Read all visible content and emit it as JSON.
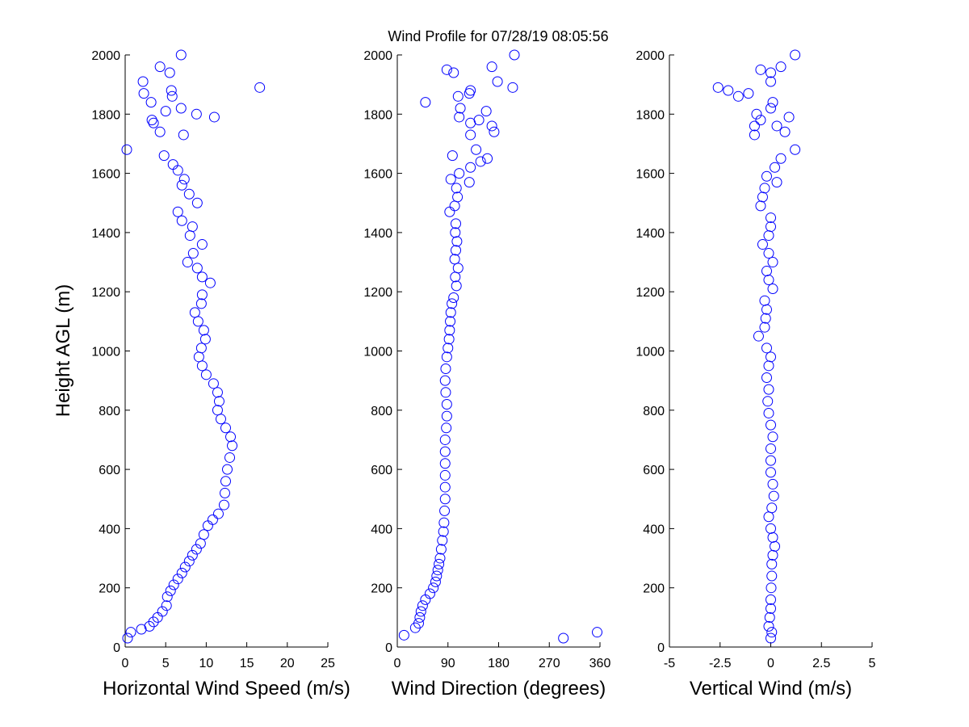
{
  "title": "Wind Profile for  07/28/19 08:05:56",
  "y_label": "Height AGL (m)",
  "colors": {
    "marker": "#0000ff",
    "axis": "#000000",
    "background": "#ffffff"
  },
  "chart_data": [
    {
      "type": "scatter",
      "marker": "circle",
      "xlabel": "Horizontal Wind Speed (m/s)",
      "ylabel": "Height AGL (m)",
      "xlim": [
        0,
        25
      ],
      "ylim": [
        0,
        2000
      ],
      "xticks": [
        0,
        5,
        10,
        15,
        20,
        25
      ],
      "xtick_labels": [
        "0",
        "5",
        "10",
        "15",
        "20",
        "25"
      ],
      "yticks": [
        0,
        200,
        400,
        600,
        800,
        1000,
        1200,
        1400,
        1600,
        1800,
        2000
      ],
      "ytick_labels": [
        "0",
        "200",
        "400",
        "600",
        "800",
        "1000",
        "1200",
        "1400",
        "1600",
        "1800",
        "2000"
      ],
      "grid": false,
      "points": [
        {
          "x": 0.3,
          "y": 30
        },
        {
          "x": 0.7,
          "y": 50
        },
        {
          "x": 2,
          "y": 60
        },
        {
          "x": 3,
          "y": 70
        },
        {
          "x": 3.5,
          "y": 85
        },
        {
          "x": 4,
          "y": 100
        },
        {
          "x": 4.6,
          "y": 120
        },
        {
          "x": 5.1,
          "y": 140
        },
        {
          "x": 5.2,
          "y": 170
        },
        {
          "x": 5.6,
          "y": 190
        },
        {
          "x": 6,
          "y": 210
        },
        {
          "x": 6.5,
          "y": 230
        },
        {
          "x": 7,
          "y": 250
        },
        {
          "x": 7.4,
          "y": 270
        },
        {
          "x": 7.9,
          "y": 290
        },
        {
          "x": 8.3,
          "y": 310
        },
        {
          "x": 8.8,
          "y": 330
        },
        {
          "x": 9.3,
          "y": 350
        },
        {
          "x": 9.7,
          "y": 380
        },
        {
          "x": 10.2,
          "y": 410
        },
        {
          "x": 10.8,
          "y": 430
        },
        {
          "x": 11.5,
          "y": 450
        },
        {
          "x": 12.2,
          "y": 480
        },
        {
          "x": 12.3,
          "y": 520
        },
        {
          "x": 12.4,
          "y": 560
        },
        {
          "x": 12.6,
          "y": 600
        },
        {
          "x": 12.9,
          "y": 640
        },
        {
          "x": 13.2,
          "y": 680
        },
        {
          "x": 13,
          "y": 710
        },
        {
          "x": 12.4,
          "y": 740
        },
        {
          "x": 11.8,
          "y": 770
        },
        {
          "x": 11.4,
          "y": 800
        },
        {
          "x": 11.6,
          "y": 830
        },
        {
          "x": 11.4,
          "y": 860
        },
        {
          "x": 10.9,
          "y": 890
        },
        {
          "x": 10,
          "y": 920
        },
        {
          "x": 9.5,
          "y": 950
        },
        {
          "x": 9.1,
          "y": 980
        },
        {
          "x": 9.4,
          "y": 1010
        },
        {
          "x": 9.9,
          "y": 1040
        },
        {
          "x": 9.7,
          "y": 1070
        },
        {
          "x": 9,
          "y": 1100
        },
        {
          "x": 8.6,
          "y": 1130
        },
        {
          "x": 9.4,
          "y": 1160
        },
        {
          "x": 9.5,
          "y": 1190
        },
        {
          "x": 10.5,
          "y": 1230
        },
        {
          "x": 9.5,
          "y": 1250
        },
        {
          "x": 8.9,
          "y": 1280
        },
        {
          "x": 7.7,
          "y": 1300
        },
        {
          "x": 8.4,
          "y": 1330
        },
        {
          "x": 9.5,
          "y": 1360
        },
        {
          "x": 8,
          "y": 1390
        },
        {
          "x": 8.3,
          "y": 1420
        },
        {
          "x": 7,
          "y": 1440
        },
        {
          "x": 6.5,
          "y": 1470
        },
        {
          "x": 8.9,
          "y": 1500
        },
        {
          "x": 7.9,
          "y": 1530
        },
        {
          "x": 7,
          "y": 1560
        },
        {
          "x": 7.3,
          "y": 1580
        },
        {
          "x": 6.5,
          "y": 1610
        },
        {
          "x": 5.9,
          "y": 1630
        },
        {
          "x": 4.8,
          "y": 1660
        },
        {
          "x": 0.2,
          "y": 1680
        },
        {
          "x": 7.2,
          "y": 1730
        },
        {
          "x": 4.3,
          "y": 1740
        },
        {
          "x": 3.5,
          "y": 1770
        },
        {
          "x": 3.3,
          "y": 1780
        },
        {
          "x": 11,
          "y": 1790
        },
        {
          "x": 8.8,
          "y": 1800
        },
        {
          "x": 5,
          "y": 1810
        },
        {
          "x": 6.9,
          "y": 1820
        },
        {
          "x": 3.2,
          "y": 1840
        },
        {
          "x": 5.8,
          "y": 1860
        },
        {
          "x": 2.3,
          "y": 1870
        },
        {
          "x": 5.7,
          "y": 1880
        },
        {
          "x": 16.6,
          "y": 1890
        },
        {
          "x": 2.2,
          "y": 1910
        },
        {
          "x": 5.5,
          "y": 1940
        },
        {
          "x": 4.3,
          "y": 1960
        },
        {
          "x": 6.9,
          "y": 2000
        }
      ]
    },
    {
      "type": "scatter",
      "marker": "circle",
      "xlabel": "Wind Direction (degrees)",
      "ylabel": "",
      "xlim": [
        0,
        360
      ],
      "ylim": [
        0,
        2000
      ],
      "xticks": [
        0,
        90,
        180,
        270,
        360
      ],
      "xtick_labels": [
        "0",
        "90",
        "180",
        "270",
        "360"
      ],
      "yticks": [
        0,
        200,
        400,
        600,
        800,
        1000,
        1200,
        1400,
        1600,
        1800,
        2000
      ],
      "ytick_labels": [
        "0",
        "200",
        "400",
        "600",
        "800",
        "1000",
        "1200",
        "1400",
        "1600",
        "1800",
        "2000"
      ],
      "grid": false,
      "points": [
        {
          "x": 12,
          "y": 40
        },
        {
          "x": 355,
          "y": 50
        },
        {
          "x": 295,
          "y": 30
        },
        {
          "x": 32,
          "y": 65
        },
        {
          "x": 38,
          "y": 80
        },
        {
          "x": 40,
          "y": 100
        },
        {
          "x": 42,
          "y": 120
        },
        {
          "x": 45,
          "y": 140
        },
        {
          "x": 50,
          "y": 160
        },
        {
          "x": 58,
          "y": 180
        },
        {
          "x": 64,
          "y": 200
        },
        {
          "x": 68,
          "y": 220
        },
        {
          "x": 70,
          "y": 240
        },
        {
          "x": 72,
          "y": 260
        },
        {
          "x": 74,
          "y": 280
        },
        {
          "x": 76,
          "y": 300
        },
        {
          "x": 78,
          "y": 330
        },
        {
          "x": 80,
          "y": 360
        },
        {
          "x": 82,
          "y": 390
        },
        {
          "x": 83,
          "y": 420
        },
        {
          "x": 84,
          "y": 460
        },
        {
          "x": 85,
          "y": 500
        },
        {
          "x": 85,
          "y": 540
        },
        {
          "x": 85,
          "y": 580
        },
        {
          "x": 85,
          "y": 620
        },
        {
          "x": 85,
          "y": 660
        },
        {
          "x": 85,
          "y": 700
        },
        {
          "x": 87,
          "y": 740
        },
        {
          "x": 88,
          "y": 780
        },
        {
          "x": 88,
          "y": 820
        },
        {
          "x": 86,
          "y": 860
        },
        {
          "x": 85,
          "y": 900
        },
        {
          "x": 86,
          "y": 940
        },
        {
          "x": 88,
          "y": 980
        },
        {
          "x": 90,
          "y": 1010
        },
        {
          "x": 92,
          "y": 1040
        },
        {
          "x": 93,
          "y": 1070
        },
        {
          "x": 94,
          "y": 1100
        },
        {
          "x": 95,
          "y": 1130
        },
        {
          "x": 97,
          "y": 1160
        },
        {
          "x": 100,
          "y": 1180
        },
        {
          "x": 105,
          "y": 1220
        },
        {
          "x": 103,
          "y": 1250
        },
        {
          "x": 108,
          "y": 1280
        },
        {
          "x": 102,
          "y": 1310
        },
        {
          "x": 104,
          "y": 1340
        },
        {
          "x": 106,
          "y": 1370
        },
        {
          "x": 103,
          "y": 1400
        },
        {
          "x": 104,
          "y": 1430
        },
        {
          "x": 93,
          "y": 1470
        },
        {
          "x": 102,
          "y": 1490
        },
        {
          "x": 107,
          "y": 1520
        },
        {
          "x": 105,
          "y": 1550
        },
        {
          "x": 95,
          "y": 1580
        },
        {
          "x": 110,
          "y": 1600
        },
        {
          "x": 128,
          "y": 1570
        },
        {
          "x": 130,
          "y": 1620
        },
        {
          "x": 148,
          "y": 1640
        },
        {
          "x": 160,
          "y": 1650
        },
        {
          "x": 98,
          "y": 1660
        },
        {
          "x": 140,
          "y": 1680
        },
        {
          "x": 130,
          "y": 1730
        },
        {
          "x": 172,
          "y": 1740
        },
        {
          "x": 168,
          "y": 1760
        },
        {
          "x": 130,
          "y": 1770
        },
        {
          "x": 145,
          "y": 1780
        },
        {
          "x": 110,
          "y": 1790
        },
        {
          "x": 158,
          "y": 1810
        },
        {
          "x": 112,
          "y": 1820
        },
        {
          "x": 50,
          "y": 1840
        },
        {
          "x": 108,
          "y": 1860
        },
        {
          "x": 128,
          "y": 1870
        },
        {
          "x": 130,
          "y": 1880
        },
        {
          "x": 205,
          "y": 1890
        },
        {
          "x": 178,
          "y": 1910
        },
        {
          "x": 100,
          "y": 1940
        },
        {
          "x": 88,
          "y": 1950
        },
        {
          "x": 168,
          "y": 1960
        },
        {
          "x": 208,
          "y": 2000
        }
      ]
    },
    {
      "type": "scatter",
      "marker": "circle",
      "xlabel": "Vertical Wind (m/s)",
      "ylabel": "",
      "xlim": [
        -5,
        5
      ],
      "ylim": [
        0,
        2000
      ],
      "xticks": [
        -5,
        -2.5,
        0,
        2.5,
        5
      ],
      "xtick_labels": [
        "-5",
        "-2.5",
        "0",
        "2.5",
        "5"
      ],
      "yticks": [
        0,
        200,
        400,
        600,
        800,
        1000,
        1200,
        1400,
        1600,
        1800,
        2000
      ],
      "ytick_labels": [
        "0",
        "200",
        "400",
        "600",
        "800",
        "1000",
        "1200",
        "1400",
        "1600",
        "1800",
        "2000"
      ],
      "grid": false,
      "points": [
        {
          "x": 0,
          "y": 30
        },
        {
          "x": 0.05,
          "y": 50
        },
        {
          "x": -0.1,
          "y": 70
        },
        {
          "x": -0.05,
          "y": 100
        },
        {
          "x": 0,
          "y": 130
        },
        {
          "x": 0,
          "y": 160
        },
        {
          "x": 0.02,
          "y": 200
        },
        {
          "x": 0.05,
          "y": 240
        },
        {
          "x": 0.05,
          "y": 280
        },
        {
          "x": 0.1,
          "y": 310
        },
        {
          "x": 0.2,
          "y": 340
        },
        {
          "x": 0.1,
          "y": 370
        },
        {
          "x": 0,
          "y": 400
        },
        {
          "x": -0.1,
          "y": 440
        },
        {
          "x": 0.05,
          "y": 470
        },
        {
          "x": 0.15,
          "y": 510
        },
        {
          "x": 0.1,
          "y": 550
        },
        {
          "x": 0,
          "y": 590
        },
        {
          "x": 0,
          "y": 630
        },
        {
          "x": 0,
          "y": 670
        },
        {
          "x": 0.1,
          "y": 710
        },
        {
          "x": 0,
          "y": 750
        },
        {
          "x": -0.1,
          "y": 790
        },
        {
          "x": -0.15,
          "y": 830
        },
        {
          "x": -0.1,
          "y": 870
        },
        {
          "x": -0.2,
          "y": 910
        },
        {
          "x": -0.1,
          "y": 950
        },
        {
          "x": 0,
          "y": 980
        },
        {
          "x": -0.2,
          "y": 1010
        },
        {
          "x": -0.6,
          "y": 1050
        },
        {
          "x": -0.3,
          "y": 1080
        },
        {
          "x": -0.25,
          "y": 1110
        },
        {
          "x": -0.2,
          "y": 1140
        },
        {
          "x": -0.3,
          "y": 1170
        },
        {
          "x": 0.1,
          "y": 1210
        },
        {
          "x": -0.1,
          "y": 1240
        },
        {
          "x": -0.2,
          "y": 1270
        },
        {
          "x": 0.1,
          "y": 1300
        },
        {
          "x": -0.1,
          "y": 1330
        },
        {
          "x": -0.4,
          "y": 1360
        },
        {
          "x": -0.1,
          "y": 1390
        },
        {
          "x": 0,
          "y": 1420
        },
        {
          "x": 0,
          "y": 1450
        },
        {
          "x": -0.5,
          "y": 1490
        },
        {
          "x": -0.4,
          "y": 1520
        },
        {
          "x": -0.3,
          "y": 1550
        },
        {
          "x": 0.3,
          "y": 1570
        },
        {
          "x": -0.2,
          "y": 1590
        },
        {
          "x": 0.2,
          "y": 1620
        },
        {
          "x": 0.5,
          "y": 1650
        },
        {
          "x": 1.2,
          "y": 1680
        },
        {
          "x": -0.8,
          "y": 1730
        },
        {
          "x": 0.7,
          "y": 1740
        },
        {
          "x": -0.8,
          "y": 1760
        },
        {
          "x": 0.3,
          "y": 1760
        },
        {
          "x": -0.5,
          "y": 1780
        },
        {
          "x": 0.9,
          "y": 1790
        },
        {
          "x": -0.7,
          "y": 1800
        },
        {
          "x": 0,
          "y": 1820
        },
        {
          "x": 0.1,
          "y": 1840
        },
        {
          "x": -1.6,
          "y": 1860
        },
        {
          "x": -1.1,
          "y": 1870
        },
        {
          "x": -2.1,
          "y": 1880
        },
        {
          "x": -2.6,
          "y": 1890
        },
        {
          "x": 0,
          "y": 1910
        },
        {
          "x": 0,
          "y": 1940
        },
        {
          "x": -0.5,
          "y": 1950
        },
        {
          "x": 0.5,
          "y": 1960
        },
        {
          "x": 1.2,
          "y": 2000
        }
      ]
    }
  ]
}
